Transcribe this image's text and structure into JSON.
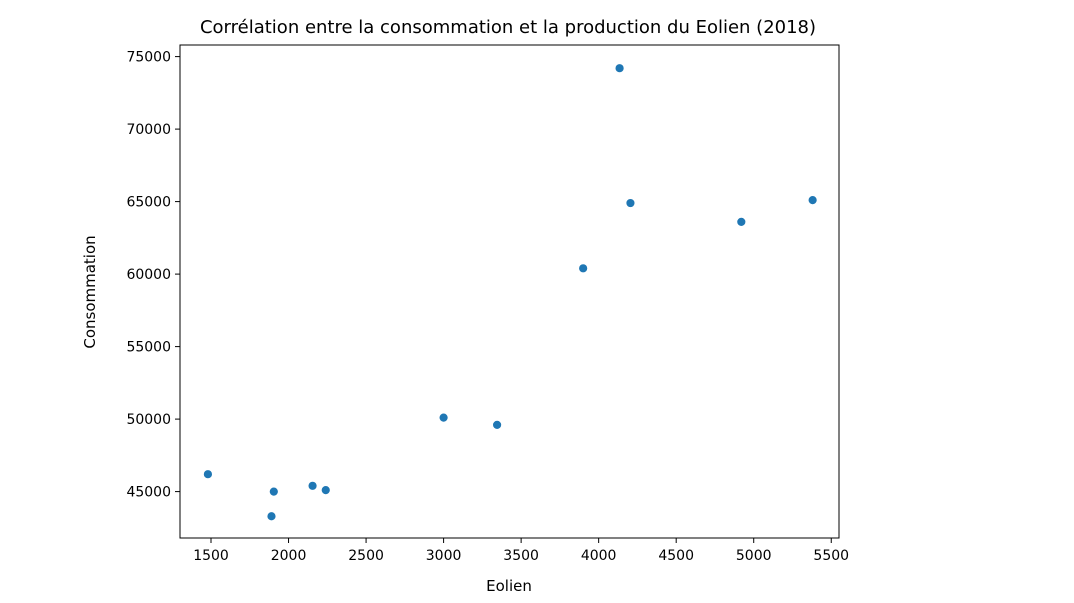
{
  "chart_data": {
    "type": "scatter",
    "title": "Corrélation entre la consommation et la production du Eolien (2018)",
    "xlabel": "Eolien",
    "ylabel": "Consommation",
    "xlim": [
      1300,
      5550
    ],
    "ylim": [
      41800,
      75800
    ],
    "xticks": [
      1500,
      2000,
      2500,
      3000,
      3500,
      4000,
      4500,
      5000,
      5500
    ],
    "yticks": [
      45000,
      50000,
      55000,
      60000,
      65000,
      70000,
      75000
    ],
    "grid": false,
    "marker_color": "#1f77b4",
    "points": [
      {
        "x": 1480,
        "y": 46200
      },
      {
        "x": 1890,
        "y": 43300
      },
      {
        "x": 1905,
        "y": 45000
      },
      {
        "x": 2155,
        "y": 45400
      },
      {
        "x": 2240,
        "y": 45100
      },
      {
        "x": 3000,
        "y": 50100
      },
      {
        "x": 3345,
        "y": 49600
      },
      {
        "x": 3900,
        "y": 60400
      },
      {
        "x": 4135,
        "y": 74200
      },
      {
        "x": 4205,
        "y": 64900
      },
      {
        "x": 4920,
        "y": 63600
      },
      {
        "x": 5380,
        "y": 65100
      }
    ]
  }
}
